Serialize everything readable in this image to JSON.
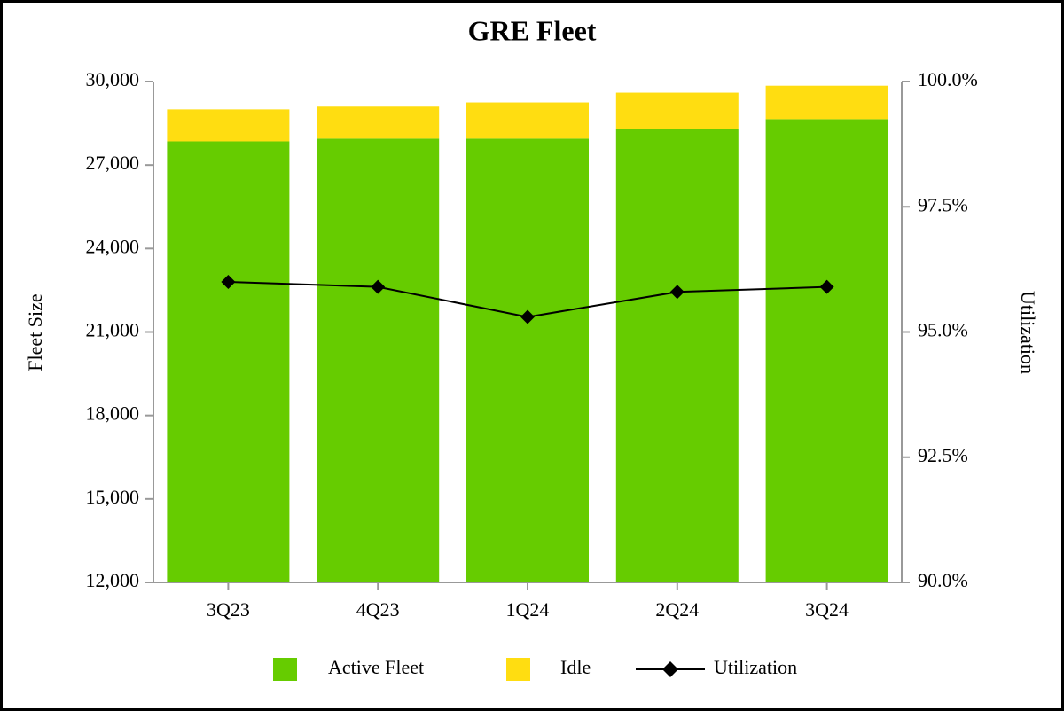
{
  "chart_data": {
    "type": "bar",
    "stacked": true,
    "title": "GRE Fleet",
    "y_label": "Fleet Size",
    "y2_label": "Utilization",
    "categories": [
      "3Q23",
      "4Q23",
      "1Q24",
      "2Q24",
      "3Q24"
    ],
    "series": [
      {
        "name": "Active Fleet",
        "color": "#66cc00",
        "values": [
          27850,
          27950,
          27950,
          28300,
          28650
        ]
      },
      {
        "name": "Idle",
        "color": "#ffdd11",
        "values": [
          1150,
          1150,
          1300,
          1300,
          1200
        ]
      },
      {
        "name": "Utilization",
        "type": "line",
        "axis": "y2",
        "color": "#000000",
        "values": [
          96.0,
          95.9,
          95.3,
          95.8,
          95.9
        ]
      }
    ],
    "ylim": [
      12000,
      30000
    ],
    "yticks": [
      {
        "value": 12000,
        "label": "12,000"
      },
      {
        "value": 15000,
        "label": "15,000"
      },
      {
        "value": 18000,
        "label": "18,000"
      },
      {
        "value": 21000,
        "label": "21,000"
      },
      {
        "value": 24000,
        "label": "24,000"
      },
      {
        "value": 27000,
        "label": "27,000"
      },
      {
        "value": 30000,
        "label": "30,000"
      }
    ],
    "y2lim": [
      90,
      100
    ],
    "y2ticks": [
      {
        "value": 90,
        "label": "90.0%"
      },
      {
        "value": 92.5,
        "label": "92.5%"
      },
      {
        "value": 95,
        "label": "95.0%"
      },
      {
        "value": 97.5,
        "label": "97.5%"
      },
      {
        "value": 100,
        "label": "100.0%"
      }
    ],
    "grid": false,
    "legend": "bottom"
  }
}
